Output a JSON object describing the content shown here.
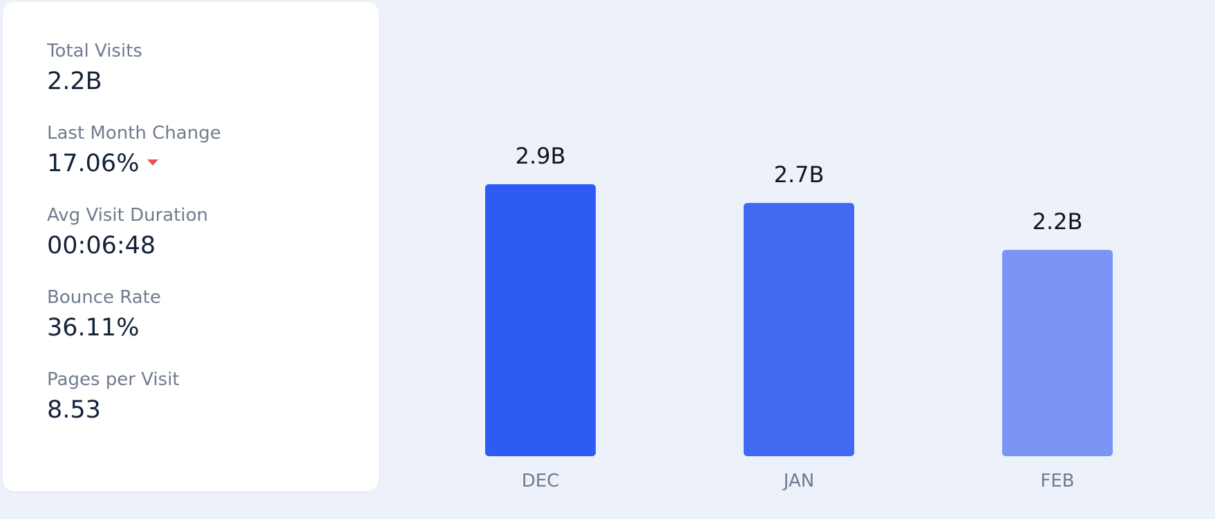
{
  "stats": [
    {
      "label": "Total Visits",
      "value": "2.2B"
    },
    {
      "label": "Last Month Change",
      "value": "17.06%",
      "trend_icon": "caret-down-icon",
      "trend_color": "#e55454"
    },
    {
      "label": "Avg Visit Duration",
      "value": "00:06:48"
    },
    {
      "label": "Bounce Rate",
      "value": "36.11%"
    },
    {
      "label": "Pages per Visit",
      "value": "8.53"
    }
  ],
  "chart_data": {
    "type": "bar",
    "categories": [
      "DEC",
      "JAN",
      "FEB"
    ],
    "values": [
      2.9,
      2.7,
      2.2
    ],
    "data_labels": [
      "2.9B",
      "2.7B",
      "2.2B"
    ],
    "colors": [
      "#2d5bf3",
      "#4169f2",
      "#7a95f3"
    ],
    "ylim": [
      0,
      2.9
    ],
    "grid": false,
    "legend": "none"
  }
}
